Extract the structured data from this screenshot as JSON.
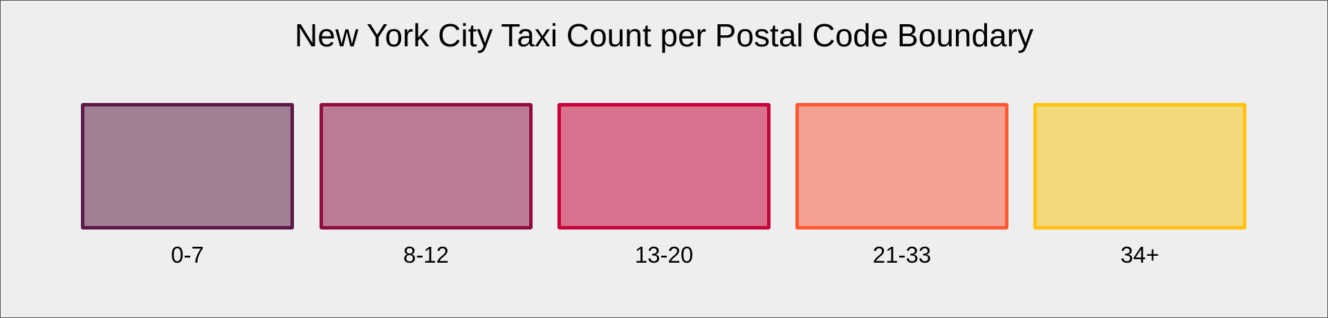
{
  "title": "New York City Taxi Count per Postal Code Boundary",
  "legend": [
    {
      "label": "0-7",
      "border": "#5c1847",
      "fill": "#a07e93"
    },
    {
      "label": "8-12",
      "border": "#900c3f",
      "fill": "#bc7b94"
    },
    {
      "label": "13-20",
      "border": "#c70039",
      "fill": "#d9728e"
    },
    {
      "label": "21-33",
      "border": "#ff5733",
      "fill": "#f3a292"
    },
    {
      "label": "34+",
      "border": "#ffc30f",
      "fill": "#f3d87c"
    }
  ]
}
